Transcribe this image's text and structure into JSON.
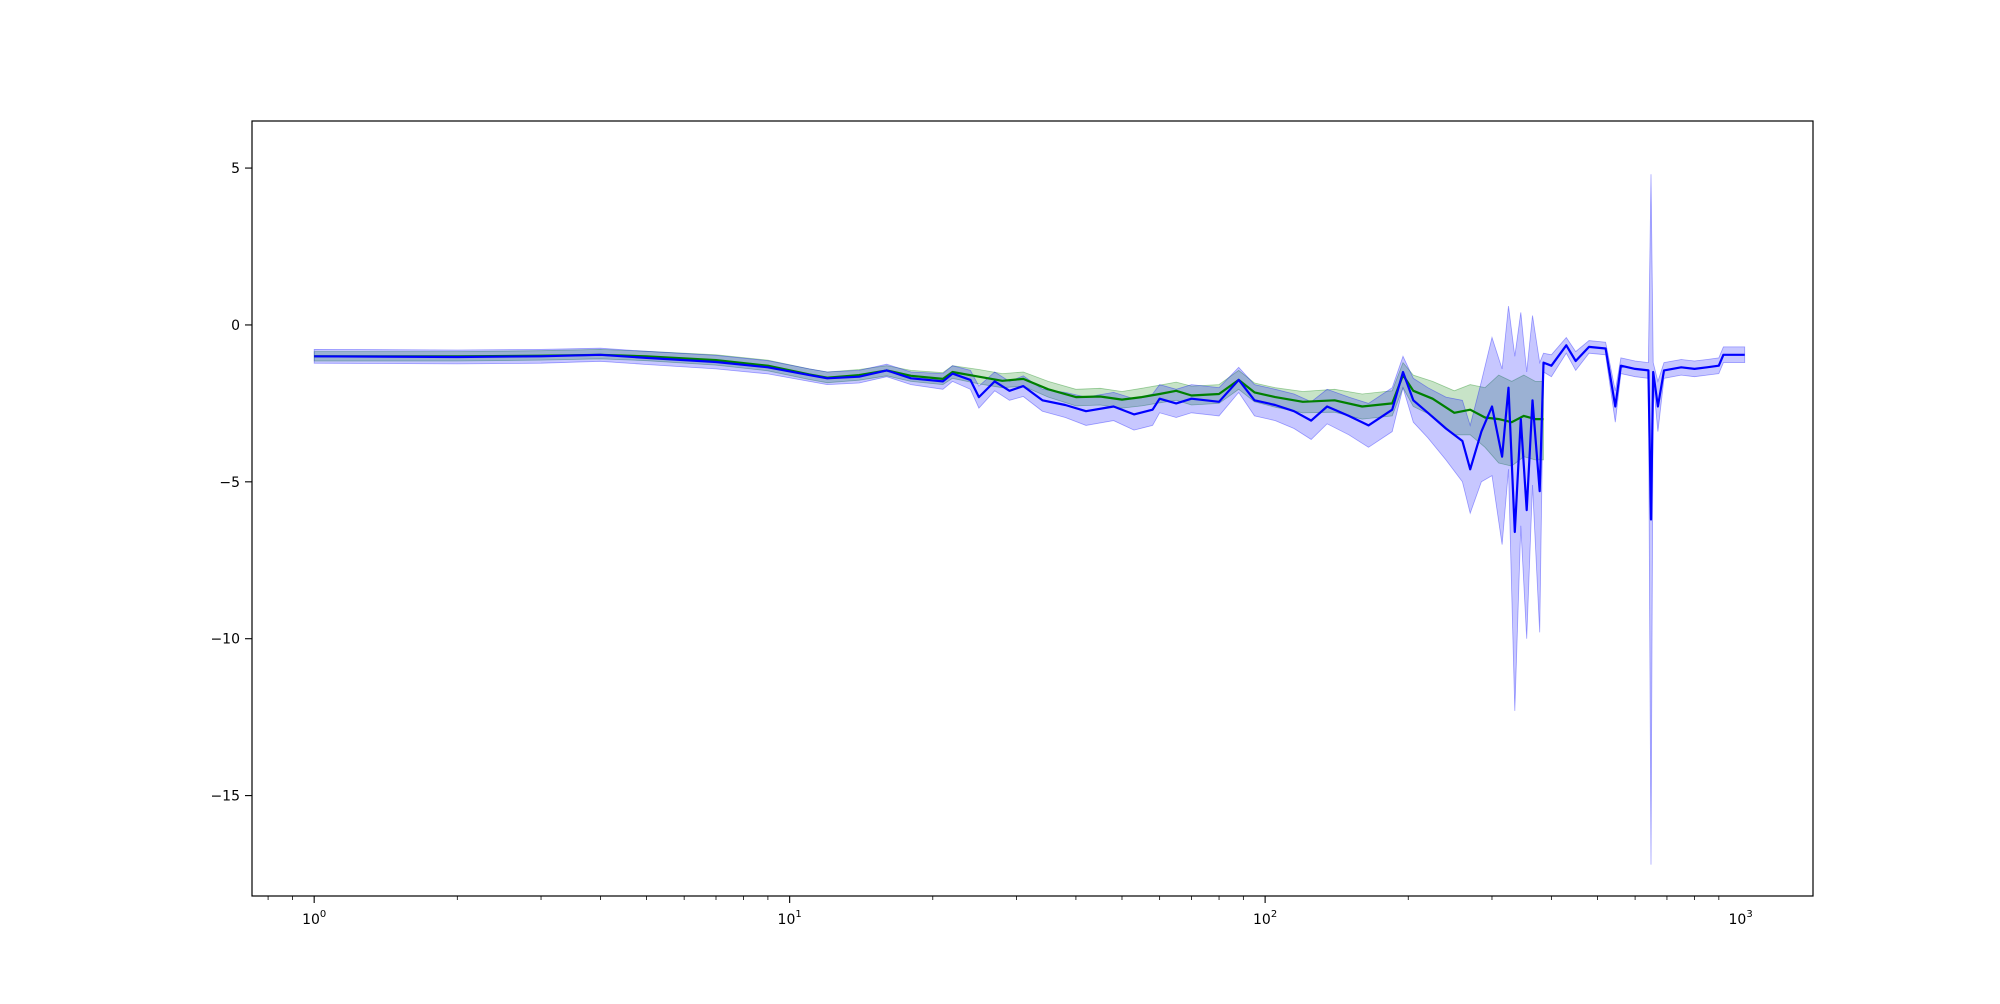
{
  "chart_data": {
    "type": "line",
    "title": "",
    "xlabel": "",
    "ylabel": "",
    "xscale": "log",
    "xlim": [
      0.74,
      1420
    ],
    "ylim": [
      -18.2,
      6.5
    ],
    "grid": false,
    "legend": "none",
    "x_ticks": [
      {
        "value": 1,
        "base": "10",
        "exp": "0"
      },
      {
        "value": 10,
        "base": "10",
        "exp": "1"
      },
      {
        "value": 100,
        "base": "10",
        "exp": "2"
      },
      {
        "value": 1000,
        "base": "10",
        "exp": "3"
      }
    ],
    "y_ticks": [
      {
        "value": 5,
        "label": "5"
      },
      {
        "value": 0,
        "label": "0"
      },
      {
        "value": -5,
        "label": "−5"
      },
      {
        "value": -10,
        "label": "−10"
      },
      {
        "value": -15,
        "label": "−15"
      }
    ],
    "series": [
      {
        "color": "#008000",
        "band_color": "#008000",
        "points": [
          [
            1,
            -1.0,
            -0.85,
            -1.15
          ],
          [
            2,
            -1.0,
            -0.85,
            -1.15
          ],
          [
            3,
            -0.98,
            -0.82,
            -1.12
          ],
          [
            4,
            -0.95,
            -0.78,
            -1.08
          ],
          [
            5,
            -1.0,
            -0.84,
            -1.14
          ],
          [
            7,
            -1.12,
            -0.95,
            -1.28
          ],
          [
            9,
            -1.3,
            -1.12,
            -1.46
          ],
          [
            11,
            -1.58,
            -1.4,
            -1.74
          ],
          [
            12,
            -1.68,
            -1.5,
            -1.84
          ],
          [
            14,
            -1.6,
            -1.42,
            -1.76
          ],
          [
            16,
            -1.45,
            -1.3,
            -1.62
          ],
          [
            18,
            -1.62,
            -1.45,
            -1.8
          ],
          [
            21,
            -1.72,
            -1.52,
            -1.9
          ],
          [
            22,
            -1.5,
            -1.3,
            -1.7
          ],
          [
            25,
            -1.65,
            -1.42,
            -1.88
          ],
          [
            28,
            -1.78,
            -1.55,
            -2.0
          ],
          [
            31,
            -1.72,
            -1.5,
            -1.95
          ],
          [
            35,
            -2.05,
            -1.8,
            -2.3
          ],
          [
            40,
            -2.3,
            -2.05,
            -2.58
          ],
          [
            45,
            -2.28,
            -2.02,
            -2.55
          ],
          [
            50,
            -2.38,
            -2.12,
            -2.65
          ],
          [
            55,
            -2.3,
            -2.02,
            -2.58
          ],
          [
            60,
            -2.2,
            -1.92,
            -2.48
          ],
          [
            65,
            -2.1,
            -1.82,
            -2.4
          ],
          [
            70,
            -2.25,
            -1.95,
            -2.55
          ],
          [
            80,
            -2.2,
            -1.9,
            -2.5
          ],
          [
            88,
            -1.75,
            -1.45,
            -2.05
          ],
          [
            95,
            -2.15,
            -1.85,
            -2.45
          ],
          [
            105,
            -2.3,
            -2.0,
            -2.62
          ],
          [
            120,
            -2.45,
            -2.12,
            -2.8
          ],
          [
            140,
            -2.4,
            -2.05,
            -2.78
          ],
          [
            160,
            -2.6,
            -2.2,
            -3.0
          ],
          [
            185,
            -2.5,
            -2.1,
            -2.9
          ],
          [
            195,
            -1.6,
            -1.2,
            -2.0
          ],
          [
            205,
            -2.1,
            -1.6,
            -2.6
          ],
          [
            225,
            -2.35,
            -1.8,
            -2.9
          ],
          [
            250,
            -2.8,
            -2.1,
            -3.5
          ],
          [
            270,
            -2.7,
            -1.9,
            -3.5
          ],
          [
            290,
            -2.95,
            -2.0,
            -3.9
          ],
          [
            310,
            -3.0,
            -1.6,
            -4.4
          ],
          [
            330,
            -3.1,
            -1.8,
            -4.5
          ],
          [
            350,
            -2.9,
            -1.6,
            -4.2
          ],
          [
            370,
            -3.0,
            -1.8,
            -4.3
          ],
          [
            385,
            -3.0,
            -1.8,
            -4.3
          ]
        ]
      },
      {
        "color": "#0000ff",
        "band_color": "#0000ff",
        "points": [
          [
            1,
            -1.0,
            -0.78,
            -1.22
          ],
          [
            2,
            -1.02,
            -0.8,
            -1.24
          ],
          [
            3,
            -1.0,
            -0.78,
            -1.22
          ],
          [
            4,
            -0.95,
            -0.74,
            -1.16
          ],
          [
            5,
            -1.05,
            -0.84,
            -1.26
          ],
          [
            7,
            -1.18,
            -0.97,
            -1.4
          ],
          [
            9,
            -1.35,
            -1.14,
            -1.56
          ],
          [
            11,
            -1.6,
            -1.4,
            -1.8
          ],
          [
            12,
            -1.7,
            -1.5,
            -1.9
          ],
          [
            14,
            -1.65,
            -1.45,
            -1.85
          ],
          [
            16,
            -1.45,
            -1.25,
            -1.65
          ],
          [
            18,
            -1.7,
            -1.5,
            -1.9
          ],
          [
            21,
            -1.8,
            -1.55,
            -2.05
          ],
          [
            22,
            -1.55,
            -1.3,
            -1.8
          ],
          [
            24,
            -1.75,
            -1.45,
            -2.05
          ],
          [
            25,
            -2.3,
            -1.95,
            -2.65
          ],
          [
            27,
            -1.8,
            -1.5,
            -2.1
          ],
          [
            29,
            -2.1,
            -1.8,
            -2.4
          ],
          [
            31,
            -1.95,
            -1.62,
            -2.28
          ],
          [
            34,
            -2.4,
            -2.05,
            -2.75
          ],
          [
            38,
            -2.55,
            -2.15,
            -2.95
          ],
          [
            42,
            -2.75,
            -2.3,
            -3.2
          ],
          [
            48,
            -2.6,
            -2.15,
            -3.05
          ],
          [
            53,
            -2.85,
            -2.35,
            -3.35
          ],
          [
            58,
            -2.7,
            -2.2,
            -3.2
          ],
          [
            60,
            -2.35,
            -1.9,
            -2.8
          ],
          [
            65,
            -2.5,
            -2.05,
            -2.95
          ],
          [
            70,
            -2.35,
            -1.9,
            -2.8
          ],
          [
            80,
            -2.45,
            -2.0,
            -2.9
          ],
          [
            88,
            -1.75,
            -1.35,
            -2.15
          ],
          [
            95,
            -2.4,
            -1.9,
            -2.9
          ],
          [
            105,
            -2.55,
            -2.05,
            -3.05
          ],
          [
            115,
            -2.75,
            -2.2,
            -3.3
          ],
          [
            125,
            -3.05,
            -2.45,
            -3.65
          ],
          [
            135,
            -2.6,
            -2.05,
            -3.15
          ],
          [
            150,
            -2.9,
            -2.3,
            -3.5
          ],
          [
            165,
            -3.2,
            -2.5,
            -3.9
          ],
          [
            185,
            -2.7,
            -2.0,
            -3.4
          ],
          [
            195,
            -1.5,
            -1.0,
            -2.0
          ],
          [
            205,
            -2.4,
            -1.7,
            -3.1
          ],
          [
            220,
            -2.8,
            -2.0,
            -3.6
          ],
          [
            240,
            -3.3,
            -2.3,
            -4.3
          ],
          [
            260,
            -3.7,
            -2.4,
            -5.0
          ],
          [
            270,
            -4.6,
            -3.2,
            -6.0
          ],
          [
            285,
            -3.4,
            -1.8,
            -5.0
          ],
          [
            300,
            -2.6,
            -0.4,
            -4.8
          ],
          [
            315,
            -4.2,
            -1.4,
            -7.0
          ],
          [
            325,
            -2.0,
            0.6,
            -4.6
          ],
          [
            335,
            -6.6,
            -1.0,
            -12.3
          ],
          [
            345,
            -3.0,
            0.4,
            -6.4
          ],
          [
            355,
            -5.9,
            -1.5,
            -10.0
          ],
          [
            365,
            -2.4,
            0.3,
            -5.1
          ],
          [
            378,
            -5.3,
            -1.2,
            -9.8
          ],
          [
            385,
            -1.2,
            -0.9,
            -1.5
          ],
          [
            400,
            -1.3,
            -0.95,
            -1.65
          ],
          [
            430,
            -0.65,
            -0.4,
            -0.9
          ],
          [
            450,
            -1.15,
            -0.85,
            -1.45
          ],
          [
            480,
            -0.7,
            -0.5,
            -0.9
          ],
          [
            520,
            -0.75,
            -0.55,
            -0.95
          ],
          [
            545,
            -2.6,
            -2.1,
            -3.1
          ],
          [
            560,
            -1.3,
            -1.05,
            -1.55
          ],
          [
            600,
            -1.4,
            -1.15,
            -1.65
          ],
          [
            640,
            -1.45,
            -1.2,
            -1.7
          ],
          [
            648,
            -6.2,
            4.8,
            -17.2
          ],
          [
            655,
            -1.5,
            -1.2,
            -1.8
          ],
          [
            670,
            -2.6,
            -1.8,
            -3.4
          ],
          [
            690,
            -1.45,
            -1.2,
            -1.7
          ],
          [
            750,
            -1.35,
            -1.1,
            -1.6
          ],
          [
            800,
            -1.4,
            -1.15,
            -1.65
          ],
          [
            850,
            -1.35,
            -1.1,
            -1.6
          ],
          [
            900,
            -1.3,
            -1.05,
            -1.55
          ],
          [
            920,
            -0.95,
            -0.7,
            -1.2
          ],
          [
            1000,
            -0.95,
            -0.7,
            -1.2
          ],
          [
            1020,
            -0.95,
            -0.7,
            -1.2
          ]
        ]
      }
    ]
  }
}
